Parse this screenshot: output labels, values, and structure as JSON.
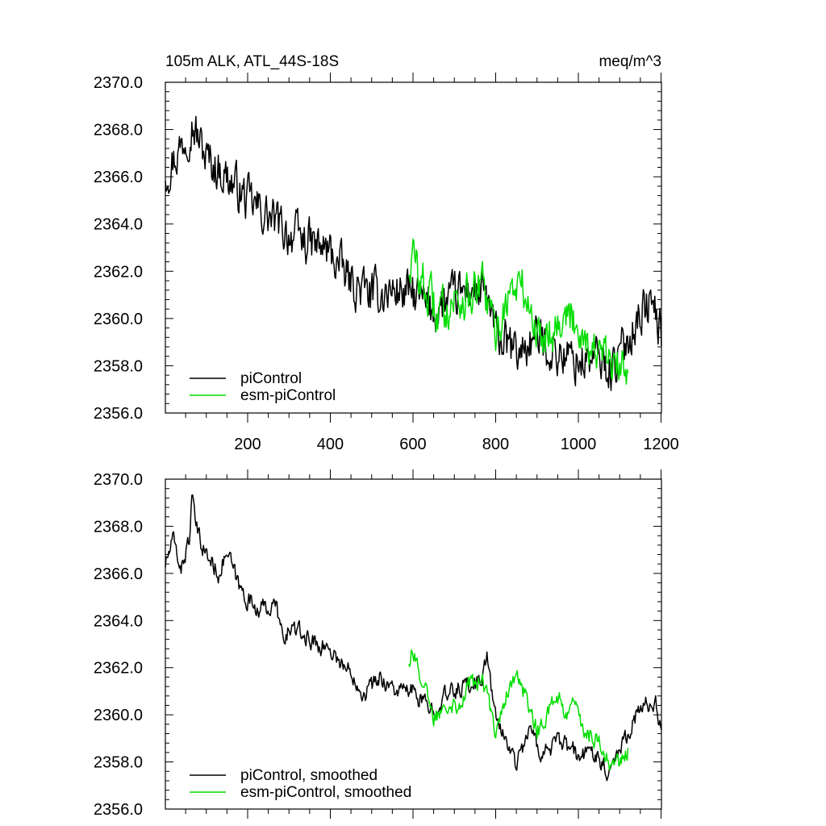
{
  "header": {
    "left_title": "105m ALK, ATL_44S-18S",
    "right_units": "meq/m^3"
  },
  "colors": {
    "piControl": "#000000",
    "esm_piControl": "#00dd00",
    "axis": "#000000",
    "background": "#ffffff"
  },
  "chart_data": [
    {
      "type": "line",
      "panel": "raw",
      "title": "105m ALK, ATL_44S-18S",
      "units": "meq/m^3",
      "xlim": [
        1,
        1201
      ],
      "ylim": [
        2356.0,
        2370.0
      ],
      "x_ticks": [
        200,
        400,
        600,
        800,
        1000,
        1200
      ],
      "x_tick_labels": [
        "200",
        "400",
        "600",
        "800",
        "1000",
        "1200"
      ],
      "y_ticks": [
        2356.0,
        2358.0,
        2360.0,
        2362.0,
        2364.0,
        2366.0,
        2368.0,
        2370.0
      ],
      "y_tick_labels": [
        "2356.0",
        "2358.0",
        "2360.0",
        "2362.0",
        "2364.0",
        "2366.0",
        "2368.0",
        "2370.0"
      ],
      "grid": false,
      "legend_position": "bottom-left",
      "noise_amplitude": 1.1,
      "series": [
        {
          "name": "piControl",
          "color": "#000000",
          "x_start": 1,
          "x_end": 1201,
          "trend": [
            [
              1,
              2366.2
            ],
            [
              30,
              2367.0
            ],
            [
              65,
              2368.3
            ],
            [
              100,
              2366.8
            ],
            [
              150,
              2366.0
            ],
            [
              200,
              2365.0
            ],
            [
              250,
              2364.3
            ],
            [
              300,
              2363.6
            ],
            [
              350,
              2363.2
            ],
            [
              400,
              2362.8
            ],
            [
              450,
              2361.5
            ],
            [
              500,
              2361.0
            ],
            [
              560,
              2361.2
            ],
            [
              600,
              2361.0
            ],
            [
              650,
              2360.3
            ],
            [
              700,
              2360.9
            ],
            [
              740,
              2361.3
            ],
            [
              780,
              2360.8
            ],
            [
              800,
              2359.3
            ],
            [
              850,
              2358.5
            ],
            [
              900,
              2359.2
            ],
            [
              950,
              2358.5
            ],
            [
              1000,
              2358.2
            ],
            [
              1050,
              2358.3
            ],
            [
              1080,
              2357.8
            ],
            [
              1110,
              2358.8
            ],
            [
              1150,
              2360.3
            ],
            [
              1180,
              2360.6
            ],
            [
              1201,
              2359.3
            ]
          ]
        },
        {
          "name": "esm-piControl",
          "color": "#00dd00",
          "x_start": 590,
          "x_end": 1120,
          "trend": [
            [
              590,
              2362.2
            ],
            [
              600,
              2362.6
            ],
            [
              630,
              2361.2
            ],
            [
              660,
              2360.2
            ],
            [
              700,
              2360.8
            ],
            [
              740,
              2361.0
            ],
            [
              770,
              2361.3
            ],
            [
              800,
              2359.3
            ],
            [
              830,
              2361.0
            ],
            [
              860,
              2361.5
            ],
            [
              880,
              2360.5
            ],
            [
              900,
              2359.3
            ],
            [
              940,
              2359.6
            ],
            [
              960,
              2360.2
            ],
            [
              1000,
              2359.8
            ],
            [
              1030,
              2358.8
            ],
            [
              1060,
              2358.3
            ],
            [
              1100,
              2357.8
            ],
            [
              1120,
              2358.2
            ]
          ]
        }
      ]
    },
    {
      "type": "line",
      "panel": "smoothed",
      "xlim": [
        1,
        1201
      ],
      "ylim": [
        2356.0,
        2370.0
      ],
      "x_ticks": [
        200,
        400,
        600,
        800,
        1000,
        1200
      ],
      "y_ticks": [
        2356.0,
        2358.0,
        2360.0,
        2362.0,
        2364.0,
        2366.0,
        2368.0,
        2370.0
      ],
      "y_tick_labels": [
        "2356.0",
        "2358.0",
        "2360.0",
        "2362.0",
        "2364.0",
        "2366.0",
        "2368.0",
        "2370.0"
      ],
      "grid": false,
      "legend_position": "bottom-left",
      "noise_amplitude": 0.45,
      "series": [
        {
          "name": "piControl, smoothed",
          "color": "#000000",
          "x_start": 1,
          "x_end": 1201,
          "trend": [
            [
              1,
              2366.4
            ],
            [
              20,
              2367.4
            ],
            [
              40,
              2366.2
            ],
            [
              60,
              2367.6
            ],
            [
              65,
              2369.1
            ],
            [
              80,
              2367.6
            ],
            [
              100,
              2366.8
            ],
            [
              130,
              2366.0
            ],
            [
              150,
              2366.9
            ],
            [
              180,
              2365.4
            ],
            [
              200,
              2364.9
            ],
            [
              230,
              2364.5
            ],
            [
              270,
              2364.6
            ],
            [
              290,
              2362.8
            ],
            [
              300,
              2363.8
            ],
            [
              330,
              2363.4
            ],
            [
              370,
              2363.0
            ],
            [
              400,
              2362.8
            ],
            [
              430,
              2362.1
            ],
            [
              460,
              2361.6
            ],
            [
              480,
              2360.9
            ],
            [
              520,
              2361.6
            ],
            [
              560,
              2361.0
            ],
            [
              600,
              2361.0
            ],
            [
              640,
              2360.2
            ],
            [
              680,
              2360.8
            ],
            [
              720,
              2361.2
            ],
            [
              760,
              2361.4
            ],
            [
              780,
              2362.4
            ],
            [
              800,
              2359.8
            ],
            [
              830,
              2358.8
            ],
            [
              850,
              2357.9
            ],
            [
              880,
              2359.4
            ],
            [
              910,
              2358.4
            ],
            [
              950,
              2358.8
            ],
            [
              980,
              2358.6
            ],
            [
              1000,
              2358.2
            ],
            [
              1040,
              2358.5
            ],
            [
              1070,
              2357.6
            ],
            [
              1100,
              2358.6
            ],
            [
              1140,
              2360.0
            ],
            [
              1170,
              2360.5
            ],
            [
              1190,
              2360.4
            ],
            [
              1201,
              2359.1
            ]
          ]
        },
        {
          "name": "esm-piControl, smoothed",
          "color": "#00dd00",
          "x_start": 590,
          "x_end": 1120,
          "trend": [
            [
              590,
              2362.3
            ],
            [
              600,
              2362.8
            ],
            [
              630,
              2361.0
            ],
            [
              650,
              2359.8
            ],
            [
              680,
              2360.6
            ],
            [
              710,
              2360.4
            ],
            [
              740,
              2361.4
            ],
            [
              770,
              2361.4
            ],
            [
              800,
              2359.4
            ],
            [
              820,
              2360.5
            ],
            [
              840,
              2361.6
            ],
            [
              860,
              2361.4
            ],
            [
              880,
              2360.4
            ],
            [
              900,
              2359.3
            ],
            [
              920,
              2359.8
            ],
            [
              950,
              2360.8
            ],
            [
              970,
              2359.9
            ],
            [
              990,
              2360.5
            ],
            [
              1010,
              2359.4
            ],
            [
              1040,
              2359.0
            ],
            [
              1060,
              2358.6
            ],
            [
              1080,
              2357.8
            ],
            [
              1100,
              2358.0
            ],
            [
              1120,
              2358.4
            ]
          ]
        }
      ]
    }
  ]
}
